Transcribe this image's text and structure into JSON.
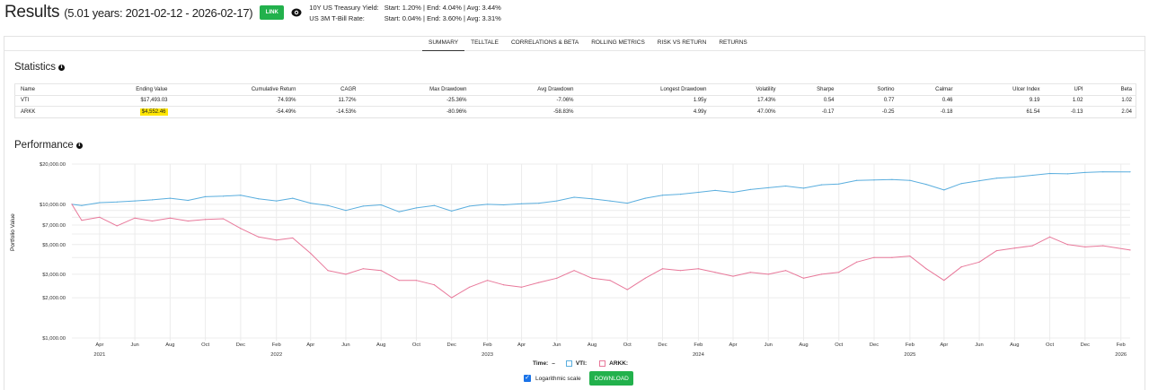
{
  "header": {
    "title": "Results",
    "subtitle": "(5.01 years: 2021-02-12 - 2026-02-17)",
    "link_label": "LINK",
    "eye_icon": "eye-icon",
    "rates": [
      {
        "label": "10Y US Treasury Yield:",
        "value": "Start: 1.20%  |  End: 4.04%  |  Avg: 3.44%"
      },
      {
        "label": "US 3M T-Bill Rate:",
        "value": "Start: 0.04%  |  End: 3.60%  |  Avg: 3.31%"
      }
    ]
  },
  "tabs": [
    {
      "label": "SUMMARY",
      "active": true
    },
    {
      "label": "TELLTALE"
    },
    {
      "label": "CORRELATIONS & BETA"
    },
    {
      "label": "ROLLING METRICS"
    },
    {
      "label": "RISK VS RETURN"
    },
    {
      "label": "RETURNS"
    }
  ],
  "statistics": {
    "title": "Statistics",
    "columns": [
      "Name",
      "Ending Value",
      "Cumulative Return",
      "CAGR",
      "Max Drawdown",
      "Avg Drawdown",
      "Longest Drawdown",
      "Volatility",
      "Sharpe",
      "Sortino",
      "Calmar",
      "Ulcer Index",
      "UPI",
      "Beta"
    ],
    "rows": [
      [
        "VTI",
        "$17,493.03",
        "74.93%",
        "11.72%",
        "-25.36%",
        "-7.06%",
        "1.95y",
        "17.43%",
        "0.54",
        "0.77",
        "0.46",
        "9.19",
        "1.02",
        "1.02"
      ],
      [
        "ARKK",
        "$4,552.46",
        "-54.49%",
        "-14.53%",
        "-80.96%",
        "-58.83%",
        "4.99y",
        "47.00%",
        "-0.17",
        "-0.25",
        "-0.18",
        "61.54",
        "-0.13",
        "2.04"
      ]
    ],
    "highlight_color": "#ffe600"
  },
  "performance": {
    "title": "Performance",
    "legend": {
      "time_label": "Time:",
      "time_value": "–",
      "series": [
        "VTI:",
        "ARKK:"
      ]
    },
    "log_scale_label": "Logarithmic scale",
    "log_scale_checked": true,
    "download_label": "DOWNLOAD"
  },
  "chart_data": {
    "type": "line",
    "ylabel": "Portfolio Value",
    "yscale": "log",
    "ylim": [
      1000,
      20000
    ],
    "yticks": [
      1000,
      2000,
      3000,
      5000,
      7000,
      10000,
      20000
    ],
    "ytick_labels": [
      "$1,000.00",
      "$2,000.00",
      "$3,000.00",
      "$5,000.00",
      "$7,000.00",
      "$10,000.00",
      "$20,000.00"
    ],
    "ygrid": [
      1000,
      2000,
      3000,
      4000,
      5000,
      6000,
      7000,
      8000,
      9000,
      10000,
      20000
    ],
    "xlim": [
      "2021-02-12",
      "2026-02-17"
    ],
    "xticks": [
      {
        "date": "2021-04-01",
        "label": "Apr",
        "year": "2021"
      },
      {
        "date": "2021-06-01",
        "label": "Jun"
      },
      {
        "date": "2021-08-01",
        "label": "Aug"
      },
      {
        "date": "2021-10-01",
        "label": "Oct"
      },
      {
        "date": "2021-12-01",
        "label": "Dec"
      },
      {
        "date": "2022-02-01",
        "label": "Feb",
        "year": "2022"
      },
      {
        "date": "2022-04-01",
        "label": "Apr"
      },
      {
        "date": "2022-06-01",
        "label": "Jun"
      },
      {
        "date": "2022-08-01",
        "label": "Aug"
      },
      {
        "date": "2022-10-01",
        "label": "Oct"
      },
      {
        "date": "2022-12-01",
        "label": "Dec"
      },
      {
        "date": "2023-02-01",
        "label": "Feb",
        "year": "2023"
      },
      {
        "date": "2023-04-01",
        "label": "Apr"
      },
      {
        "date": "2023-06-01",
        "label": "Jun"
      },
      {
        "date": "2023-08-01",
        "label": "Aug"
      },
      {
        "date": "2023-10-01",
        "label": "Oct"
      },
      {
        "date": "2023-12-01",
        "label": "Dec"
      },
      {
        "date": "2024-02-01",
        "label": "Feb",
        "year": "2024"
      },
      {
        "date": "2024-04-01",
        "label": "Apr"
      },
      {
        "date": "2024-06-01",
        "label": "Jun"
      },
      {
        "date": "2024-08-01",
        "label": "Aug"
      },
      {
        "date": "2024-10-01",
        "label": "Oct"
      },
      {
        "date": "2024-12-01",
        "label": "Dec"
      },
      {
        "date": "2025-02-01",
        "label": "Feb",
        "year": "2025"
      },
      {
        "date": "2025-04-01",
        "label": "Apr"
      },
      {
        "date": "2025-06-01",
        "label": "Jun"
      },
      {
        "date": "2025-08-01",
        "label": "Aug"
      },
      {
        "date": "2025-10-01",
        "label": "Oct"
      },
      {
        "date": "2025-12-01",
        "label": "Dec"
      },
      {
        "date": "2026-02-01",
        "label": "Feb",
        "year": "2026"
      }
    ],
    "grid": true,
    "legend_position": "bottom",
    "x": [
      "2021-02-12",
      "2021-03-01",
      "2021-04-01",
      "2021-05-01",
      "2021-06-01",
      "2021-07-01",
      "2021-08-01",
      "2021-09-01",
      "2021-10-01",
      "2021-11-01",
      "2021-12-01",
      "2022-01-01",
      "2022-02-01",
      "2022-03-01",
      "2022-04-01",
      "2022-05-01",
      "2022-06-01",
      "2022-07-01",
      "2022-08-01",
      "2022-09-01",
      "2022-10-01",
      "2022-11-01",
      "2022-12-01",
      "2023-01-01",
      "2023-02-01",
      "2023-03-01",
      "2023-04-01",
      "2023-05-01",
      "2023-06-01",
      "2023-07-01",
      "2023-08-01",
      "2023-09-01",
      "2023-10-01",
      "2023-11-01",
      "2023-12-01",
      "2024-01-01",
      "2024-02-01",
      "2024-03-01",
      "2024-04-01",
      "2024-05-01",
      "2024-06-01",
      "2024-07-01",
      "2024-08-01",
      "2024-09-01",
      "2024-10-01",
      "2024-11-01",
      "2024-12-01",
      "2025-01-01",
      "2025-02-01",
      "2025-03-01",
      "2025-04-01",
      "2025-05-01",
      "2025-06-01",
      "2025-07-01",
      "2025-08-01",
      "2025-09-01",
      "2025-10-01",
      "2025-11-01",
      "2025-12-01",
      "2026-01-01",
      "2026-02-17"
    ],
    "series": [
      {
        "name": "VTI",
        "color": "#5aaede",
        "values": [
          10000,
          9800,
          10300,
          10400,
          10600,
          10800,
          11100,
          10700,
          11400,
          11500,
          11700,
          11000,
          10600,
          11100,
          10200,
          9800,
          9000,
          9700,
          9900,
          8800,
          9400,
          9800,
          8900,
          9700,
          10000,
          9900,
          10100,
          10200,
          10600,
          11300,
          11000,
          10600,
          10200,
          11100,
          11700,
          11900,
          12300,
          12700,
          12300,
          12900,
          13300,
          13700,
          13200,
          14000,
          14200,
          15100,
          15200,
          15300,
          15100,
          14100,
          12800,
          14300,
          15000,
          15700,
          16000,
          16500,
          17000,
          16900,
          17300,
          17500,
          17493
        ]
      },
      {
        "name": "ARKK",
        "color": "#e8789a",
        "values": [
          10000,
          7600,
          8000,
          6900,
          7900,
          7500,
          7900,
          7500,
          7700,
          7800,
          6600,
          5700,
          5400,
          5600,
          4300,
          3200,
          3000,
          3300,
          3200,
          2700,
          2700,
          2500,
          2000,
          2400,
          2700,
          2500,
          2400,
          2600,
          2800,
          3200,
          2800,
          2700,
          2300,
          2800,
          3300,
          3200,
          3300,
          3100,
          2900,
          3100,
          3000,
          3200,
          2800,
          3000,
          3100,
          3700,
          4000,
          4000,
          4100,
          3300,
          2700,
          3400,
          3700,
          4500,
          4700,
          4900,
          5700,
          5000,
          4800,
          4900,
          4552
        ]
      }
    ]
  }
}
